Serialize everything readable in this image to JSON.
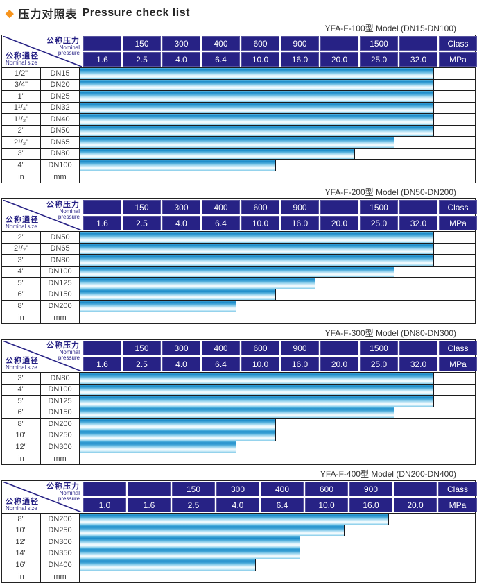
{
  "title": {
    "icon": "◆",
    "zh": "压力对照表",
    "en": "Pressure check list"
  },
  "corner": {
    "pressure_zh": "公称压力",
    "pressure_en": "Nominal pressure",
    "size_zh": "公称通径",
    "size_en": "Nominal size"
  },
  "colors": {
    "header_navy": "#272285",
    "bar_blue": "#29a3db",
    "accent_orange": "#f7941d",
    "grid_black": "#1c1c1c"
  },
  "tables": [
    {
      "model_label": "YFA-F-100型  Model (DN15-DN100)",
      "class_row": [
        "",
        "150",
        "300",
        "400",
        "600",
        "900",
        "",
        "1500",
        ""
      ],
      "class_unit": "Class",
      "mpa_row": [
        "1.6",
        "2.5",
        "4.0",
        "6.4",
        "10.0",
        "16.0",
        "20.0",
        "25.0",
        "32.0"
      ],
      "mpa_unit": "MPa",
      "rows": [
        {
          "in": "1/2\"",
          "mm": "DN15",
          "span": 9,
          "max_mpa": "32.0"
        },
        {
          "in": "3/4\"",
          "mm": "DN20",
          "span": 9,
          "max_mpa": "32.0"
        },
        {
          "in": "1\"",
          "mm": "DN25",
          "span": 9,
          "max_mpa": "32.0"
        },
        {
          "in": "1¹/₄\"",
          "mm": "DN32",
          "span": 9,
          "max_mpa": "32.0"
        },
        {
          "in": "1¹/₂\"",
          "mm": "DN40",
          "span": 9,
          "max_mpa": "32.0"
        },
        {
          "in": "2\"",
          "mm": "DN50",
          "span": 9,
          "max_mpa": "32.0"
        },
        {
          "in": "2¹/₂\"",
          "mm": "DN65",
          "span": 8,
          "max_mpa": "25.0"
        },
        {
          "in": "3\"",
          "mm": "DN80",
          "span": 7,
          "max_mpa": "20.0"
        },
        {
          "in": "4\"",
          "mm": "DN100",
          "span": 5,
          "max_mpa": "10.0"
        },
        {
          "in": "in",
          "mm": "mm",
          "span": 0,
          "max_mpa": ""
        }
      ]
    },
    {
      "model_label": "YFA-F-200型  Model (DN50-DN200)",
      "class_row": [
        "",
        "150",
        "300",
        "400",
        "600",
        "900",
        "",
        "1500",
        ""
      ],
      "class_unit": "Class",
      "mpa_row": [
        "1.6",
        "2.5",
        "4.0",
        "6.4",
        "10.0",
        "16.0",
        "20.0",
        "25.0",
        "32.0"
      ],
      "mpa_unit": "MPa",
      "rows": [
        {
          "in": "2\"",
          "mm": "DN50",
          "span": 9,
          "max_mpa": "32.0"
        },
        {
          "in": "2¹/₂\"",
          "mm": "DN65",
          "span": 9,
          "max_mpa": "32.0"
        },
        {
          "in": "3\"",
          "mm": "DN80",
          "span": 9,
          "max_mpa": "32.0"
        },
        {
          "in": "4\"",
          "mm": "DN100",
          "span": 8,
          "max_mpa": "25.0"
        },
        {
          "in": "5\"",
          "mm": "DN125",
          "span": 6,
          "max_mpa": "16.0"
        },
        {
          "in": "6\"",
          "mm": "DN150",
          "span": 5,
          "max_mpa": "10.0"
        },
        {
          "in": "8\"",
          "mm": "DN200",
          "span": 4,
          "max_mpa": "6.4"
        },
        {
          "in": "in",
          "mm": "mm",
          "span": 0,
          "max_mpa": ""
        }
      ]
    },
    {
      "model_label": "YFA-F-300型  Model (DN80-DN300)",
      "class_row": [
        "",
        "150",
        "300",
        "400",
        "600",
        "900",
        "",
        "1500",
        ""
      ],
      "class_unit": "Class",
      "mpa_row": [
        "1.6",
        "2.5",
        "4.0",
        "6.4",
        "10.0",
        "16.0",
        "20.0",
        "25.0",
        "32.0"
      ],
      "mpa_unit": "MPa",
      "rows": [
        {
          "in": "3\"",
          "mm": "DN80",
          "span": 9,
          "max_mpa": "32.0"
        },
        {
          "in": "4\"",
          "mm": "DN100",
          "span": 9,
          "max_mpa": "32.0"
        },
        {
          "in": "5\"",
          "mm": "DN125",
          "span": 9,
          "max_mpa": "32.0"
        },
        {
          "in": "6\"",
          "mm": "DN150",
          "span": 8,
          "max_mpa": "25.0"
        },
        {
          "in": "8\"",
          "mm": "DN200",
          "span": 5,
          "max_mpa": "10.0"
        },
        {
          "in": "10\"",
          "mm": "DN250",
          "span": 5,
          "max_mpa": "10.0"
        },
        {
          "in": "12\"",
          "mm": "DN300",
          "span": 4,
          "max_mpa": "6.4"
        },
        {
          "in": "in",
          "mm": "mm",
          "span": 0,
          "max_mpa": ""
        }
      ]
    },
    {
      "model_label": "YFA-F-400型  Model (DN200-DN400)",
      "class_row": [
        "",
        "",
        "150",
        "300",
        "400",
        "600",
        "900",
        ""
      ],
      "class_unit": "Class",
      "mpa_row": [
        "1.0",
        "1.6",
        "2.5",
        "4.0",
        "6.4",
        "10.0",
        "16.0",
        "20.0"
      ],
      "mpa_unit": "MPa",
      "rows": [
        {
          "in": "8\"",
          "mm": "DN200",
          "span": 7,
          "max_mpa": "16.0"
        },
        {
          "in": "10\"",
          "mm": "DN250",
          "span": 6,
          "max_mpa": "10.0"
        },
        {
          "in": "12\"",
          "mm": "DN300",
          "span": 5,
          "max_mpa": "6.4"
        },
        {
          "in": "14\"",
          "mm": "DN350",
          "span": 5,
          "max_mpa": "6.4"
        },
        {
          "in": "16\"",
          "mm": "DN400",
          "span": 4,
          "max_mpa": "4.0"
        },
        {
          "in": "in",
          "mm": "mm",
          "span": 0,
          "max_mpa": ""
        }
      ]
    }
  ]
}
